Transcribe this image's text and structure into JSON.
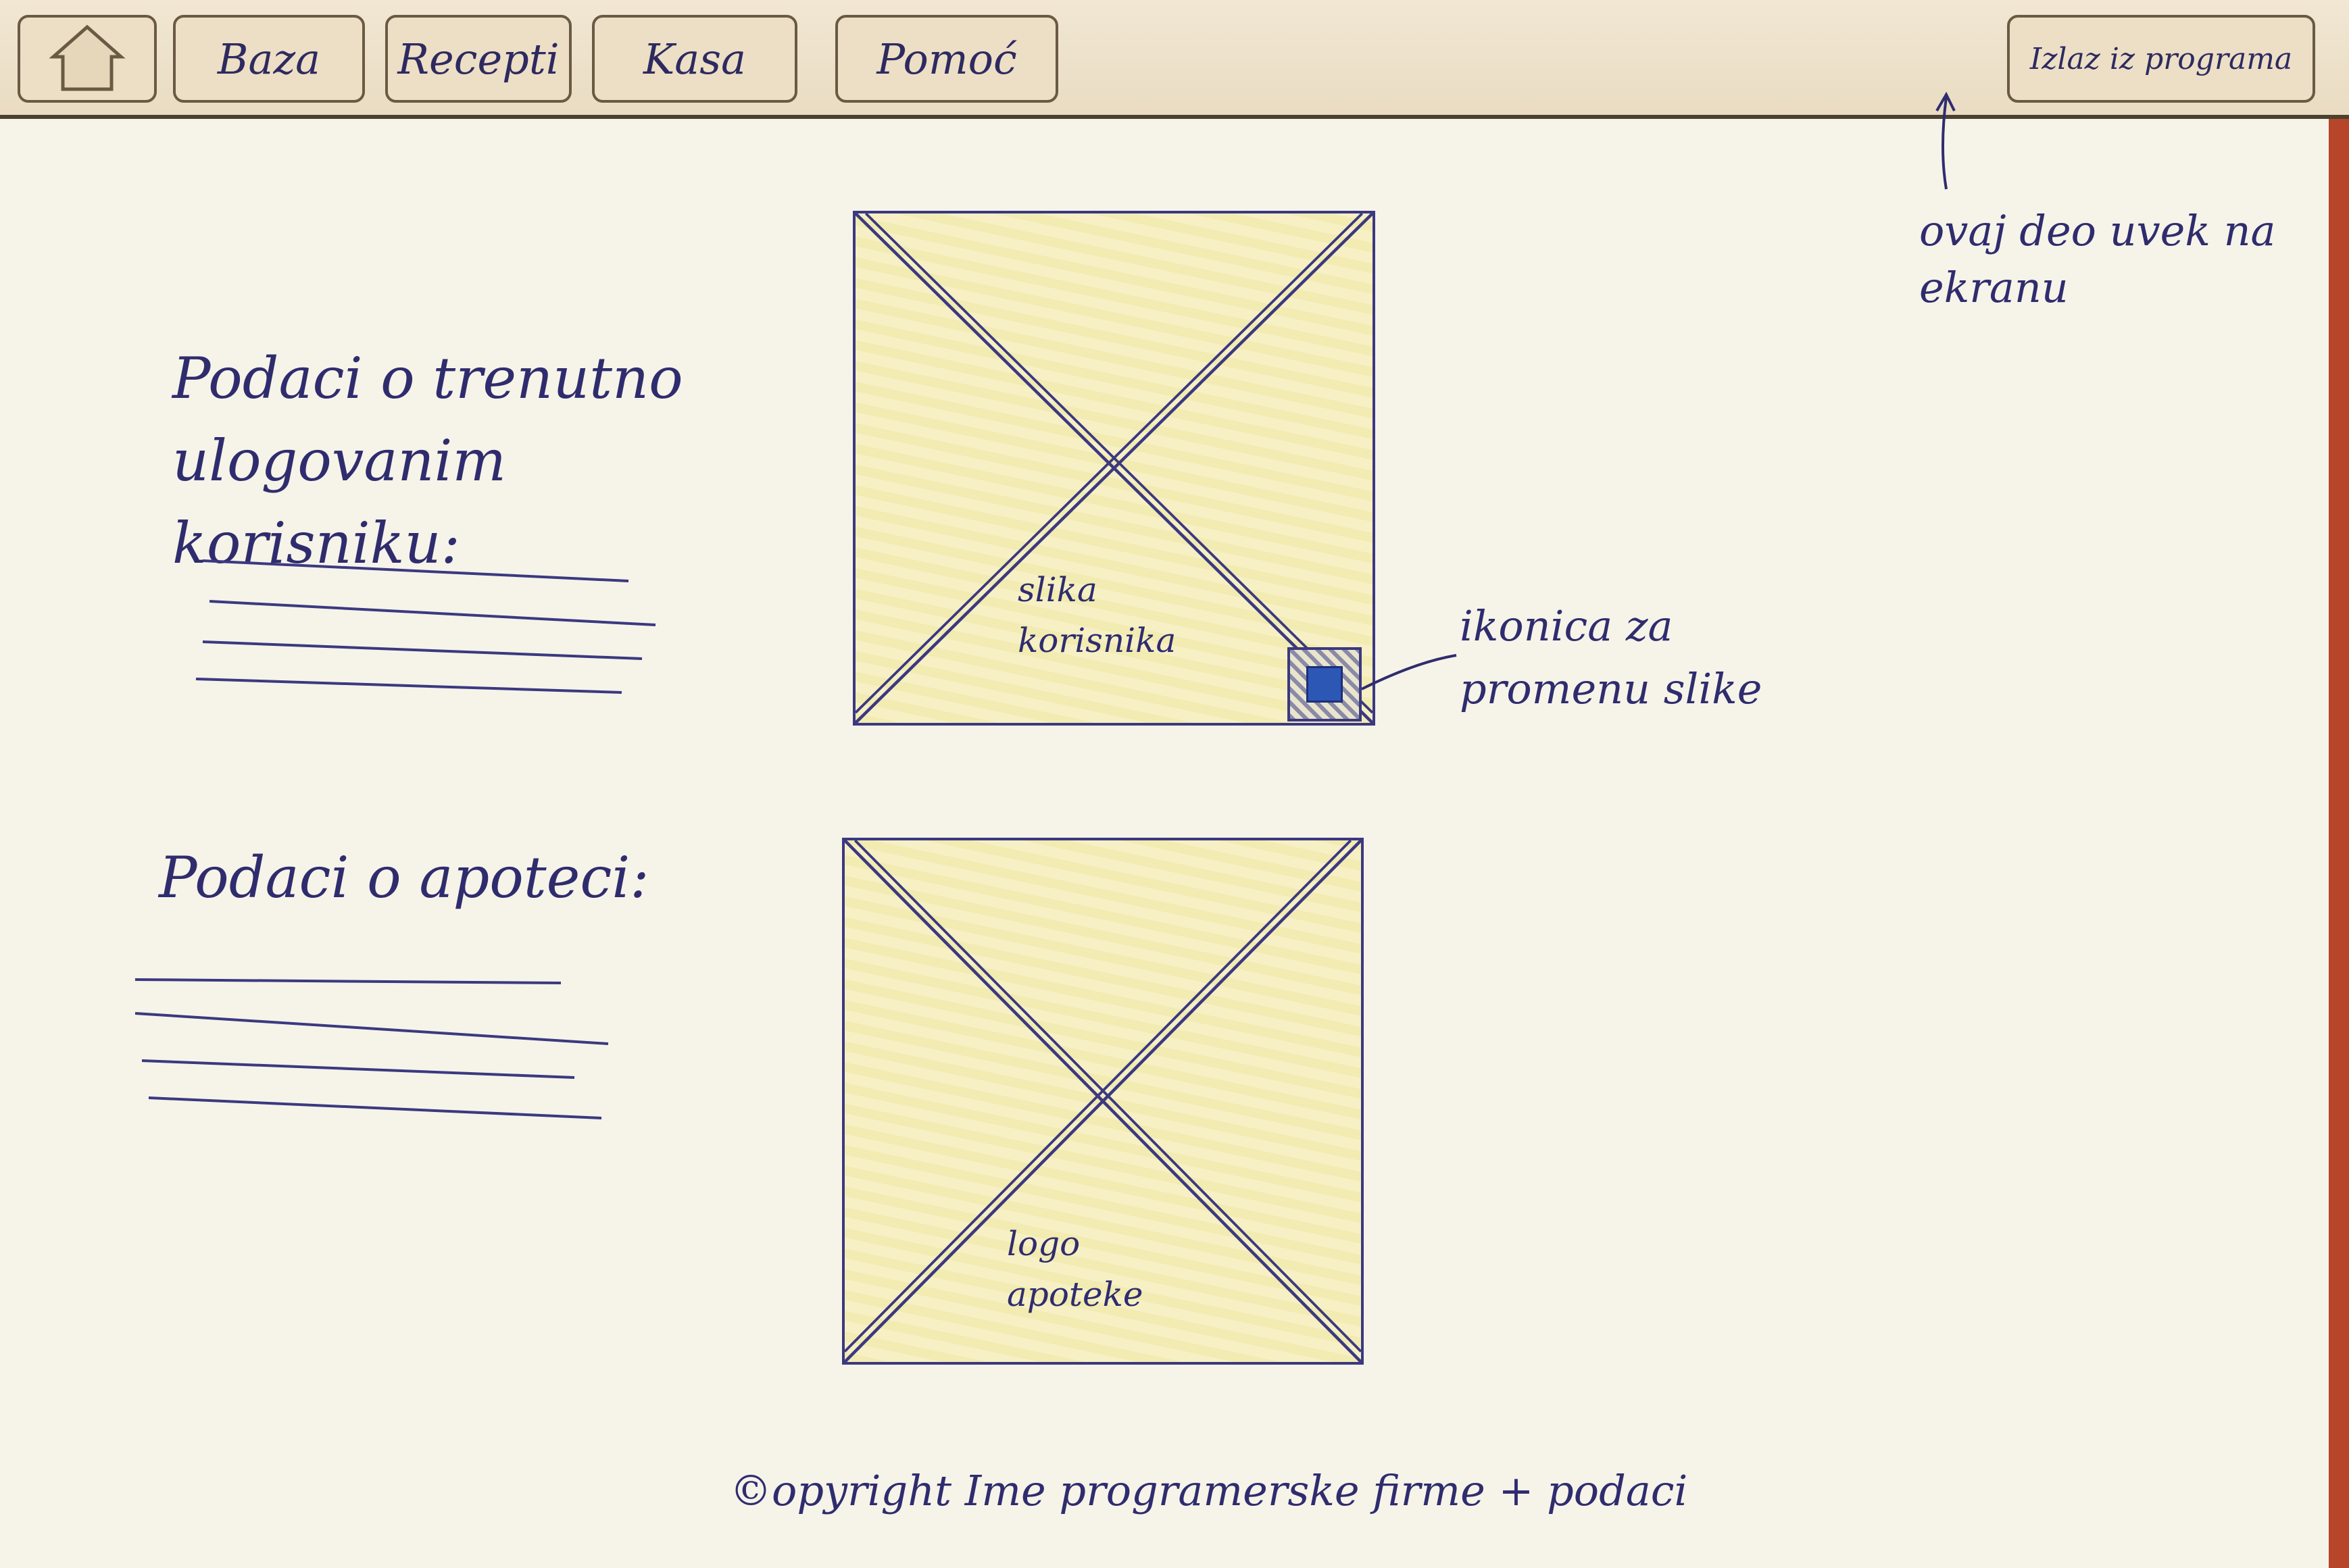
{
  "nav": {
    "home_icon": "house-icon",
    "items": [
      "Baza",
      "Recepti",
      "Kasa",
      "Pomoć"
    ],
    "exit_label": "Izlaz iz programa"
  },
  "notes": {
    "always_on_screen": "ovaj deo uvek na ekranu",
    "change_picture_icon": "ikonica za promenu slike"
  },
  "user_section": {
    "heading": "Podaci o trenutno ulogovanim korisniku:",
    "image_label": "slika korisnika"
  },
  "pharmacy_section": {
    "heading": "Podaci o apoteci:",
    "logo_label": "logo apoteke"
  },
  "footer": {
    "copyright": "©opyright Ime programerske firme + podaci"
  },
  "colors": {
    "ink": "#2f2c6e",
    "placeholder_fill": "#f2ebb2",
    "icon_blue": "#2d57b5"
  }
}
